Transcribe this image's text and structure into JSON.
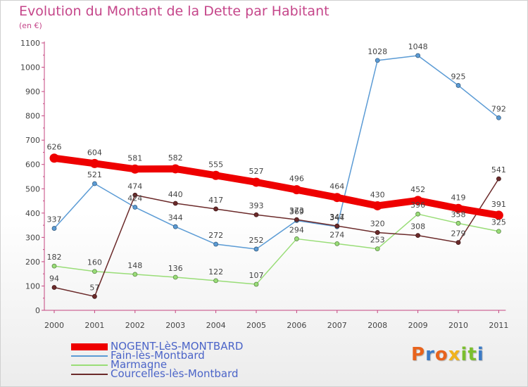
{
  "title": "Evolution du Montant de la Dette par Habitant",
  "subtitle": "(en €)",
  "logo_text": "Proxiti",
  "colors": {
    "title": "#c5468a",
    "axis": "#c4457f",
    "legend_text": "#4b64c8",
    "logo": [
      "#e8631c",
      "#3c7bc6",
      "#e8631c",
      "#f1b31c",
      "#7bbf2e",
      "#7bbf2e",
      "#3c7bc6"
    ]
  },
  "chart_data": {
    "type": "line",
    "title": "Evolution du Montant de la Dette par Habitant",
    "ylabel": "(en €)",
    "xlabel": "",
    "x": [
      "2000",
      "2001",
      "2002",
      "2003",
      "2004",
      "2005",
      "2006",
      "2007",
      "2008",
      "2009",
      "2010",
      "2011"
    ],
    "ylim": [
      0,
      1100
    ],
    "yticks": [
      0,
      100,
      200,
      300,
      400,
      500,
      600,
      700,
      800,
      900,
      1000,
      1100
    ],
    "grid": false,
    "legend_position": "bottom-left",
    "series": [
      {
        "name": "NOGENT-LèS-MONTBARD",
        "color": "#ee0000",
        "emphasis": true,
        "values": [
          626,
          604,
          581,
          582,
          555,
          527,
          496,
          464,
          430,
          452,
          419,
          391
        ]
      },
      {
        "name": "Fain-lès-Montbard",
        "color": "#5b9bd5",
        "emphasis": false,
        "values": [
          337,
          521,
          424,
          344,
          272,
          252,
          369,
          344,
          1028,
          1048,
          925,
          792
        ]
      },
      {
        "name": "Marmagne",
        "color": "#99dd77",
        "emphasis": false,
        "values": [
          182,
          160,
          148,
          136,
          122,
          107,
          294,
          274,
          253,
          396,
          358,
          325
        ]
      },
      {
        "name": "Courcelles-lès-Montbard",
        "color": "#6b2a2a",
        "emphasis": false,
        "values": [
          94,
          57,
          474,
          440,
          417,
          393,
          373,
          347,
          320,
          308,
          279,
          541
        ]
      }
    ]
  }
}
